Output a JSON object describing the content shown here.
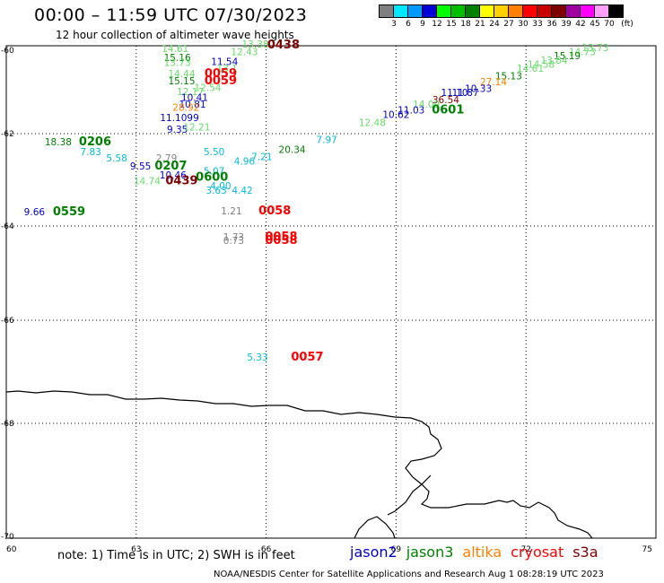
{
  "header": {
    "title": "00:00 – 11:59 UTC 07/30/2023",
    "subtitle": "12 hour collection of altimeter wave heights"
  },
  "legend": {
    "unit": "(ft)",
    "bins": [
      {
        "label": "3",
        "color": "#808080"
      },
      {
        "label": "6",
        "color": "#00e8ff"
      },
      {
        "label": "9",
        "color": "#009aff"
      },
      {
        "label": "12",
        "color": "#0000d8"
      },
      {
        "label": "15",
        "color": "#00ff00"
      },
      {
        "label": "18",
        "color": "#00c000"
      },
      {
        "label": "21",
        "color": "#008000"
      },
      {
        "label": "24",
        "color": "#ffff00"
      },
      {
        "label": "27",
        "color": "#ffd000"
      },
      {
        "label": "30",
        "color": "#ff8000"
      },
      {
        "label": "33",
        "color": "#ff0000"
      },
      {
        "label": "36",
        "color": "#c80000"
      },
      {
        "label": "39",
        "color": "#800000"
      },
      {
        "label": "42",
        "color": "#a000a0"
      },
      {
        "label": "45",
        "color": "#ff00ff"
      },
      {
        "label": "70",
        "color": "#ffa0ff"
      },
      {
        "label": "",
        "color": "#000000"
      }
    ]
  },
  "axes": {
    "lon_ticks": [
      "60",
      "63",
      "66",
      "69",
      "72",
      "75"
    ],
    "lat_ticks": [
      "-60",
      "-62",
      "-64",
      "-66",
      "-68",
      "-70"
    ]
  },
  "labels": [
    {
      "t": "14.61",
      "lon": 63.9,
      "lat": -60.04,
      "c": "#66dd66"
    },
    {
      "t": "13.38",
      "lon": 65.75,
      "lat": -59.94,
      "c": "#66dd66"
    },
    {
      "t": "0438",
      "lon": 66.4,
      "lat": -59.96,
      "c": "#800000",
      "bold": true
    },
    {
      "t": "12.43",
      "lon": 65.5,
      "lat": -60.12,
      "c": "#66dd66"
    },
    {
      "t": "15.16",
      "lon": 63.95,
      "lat": -60.26,
      "c": "#008000"
    },
    {
      "t": "11.54",
      "lon": 65.04,
      "lat": -60.35,
      "c": "#0000cc"
    },
    {
      "t": "13.73",
      "lon": 63.95,
      "lat": -60.38,
      "c": "#66dd66"
    },
    {
      "t": "13.1",
      "lon": 65.1,
      "lat": -60.52,
      "c": "#66dd66"
    },
    {
      "t": "14.44",
      "lon": 64.05,
      "lat": -60.65,
      "c": "#66dd66"
    },
    {
      "t": "0059",
      "lon": 64.95,
      "lat": -60.65,
      "c": "#ff0000",
      "bold": true
    },
    {
      "t": "15.15",
      "lon": 64.05,
      "lat": -60.82,
      "c": "#008000"
    },
    {
      "t": "0059",
      "lon": 64.95,
      "lat": -60.82,
      "c": "#ff0000",
      "bold": true
    },
    {
      "t": "12.54",
      "lon": 64.65,
      "lat": -60.98,
      "c": "#66dd66"
    },
    {
      "t": "12.17",
      "lon": 64.25,
      "lat": -61.08,
      "c": "#66dd66"
    },
    {
      "t": "10.41",
      "lon": 64.35,
      "lat": -61.22,
      "c": "#0000cc"
    },
    {
      "t": "10.81",
      "lon": 64.3,
      "lat": -61.38,
      "c": "#0000cc"
    },
    {
      "t": "28.92",
      "lon": 64.15,
      "lat": -61.45,
      "c": "#ff8000"
    },
    {
      "t": "11.1099",
      "lon": 64.0,
      "lat": -61.7,
      "c": "#0000cc"
    },
    {
      "t": "9.35",
      "lon": 63.95,
      "lat": -61.98,
      "c": "#0000cc"
    },
    {
      "t": "12.21",
      "lon": 64.4,
      "lat": -61.93,
      "c": "#66dd66"
    },
    {
      "t": "13.73",
      "lon": 73.6,
      "lat": -60.02,
      "c": "#66dd66"
    },
    {
      "t": "14.73",
      "lon": 73.3,
      "lat": -60.12,
      "c": "#66dd66"
    },
    {
      "t": "15.19",
      "lon": 72.95,
      "lat": -60.22,
      "c": "#008000"
    },
    {
      "t": "13.84",
      "lon": 72.65,
      "lat": -60.32,
      "c": "#66dd66"
    },
    {
      "t": "14.58",
      "lon": 72.35,
      "lat": -60.42,
      "c": "#66dd66"
    },
    {
      "t": "14.61",
      "lon": 72.1,
      "lat": -60.52,
      "c": "#66dd66"
    },
    {
      "t": "15.13",
      "lon": 71.6,
      "lat": -60.7,
      "c": "#008000"
    },
    {
      "t": "27.14",
      "lon": 71.25,
      "lat": -60.84,
      "c": "#ff8000"
    },
    {
      "t": "10.33",
      "lon": 70.9,
      "lat": -61.0,
      "c": "#0000cc"
    },
    {
      "t": "11.87",
      "lon": 70.6,
      "lat": -61.1,
      "c": "#0000cc"
    },
    {
      "t": "11.10",
      "lon": 70.35,
      "lat": -61.1,
      "c": "#0000cc"
    },
    {
      "t": "36.54",
      "lon": 70.15,
      "lat": -61.27,
      "c": "#800000"
    },
    {
      "t": "14.09",
      "lon": 69.7,
      "lat": -61.38,
      "c": "#66dd66"
    },
    {
      "t": "0601",
      "lon": 70.2,
      "lat": -61.52,
      "c": "#008000",
      "bold": true
    },
    {
      "t": "11.03",
      "lon": 69.35,
      "lat": -61.52,
      "c": "#0000cc"
    },
    {
      "t": "10.62",
      "lon": 69.0,
      "lat": -61.62,
      "c": "#0000cc"
    },
    {
      "t": "12.48",
      "lon": 68.45,
      "lat": -61.82,
      "c": "#66dd66"
    },
    {
      "t": "18.38",
      "lon": 61.2,
      "lat": -62.25,
      "c": "#008000"
    },
    {
      "t": "0206",
      "lon": 62.05,
      "lat": -62.25,
      "c": "#008000",
      "bold": true
    },
    {
      "t": "7.97",
      "lon": 67.4,
      "lat": -62.2,
      "c": "#00bbdd"
    },
    {
      "t": "20.34",
      "lon": 66.6,
      "lat": -62.42,
      "c": "#008000"
    },
    {
      "t": "7.83",
      "lon": 61.95,
      "lat": -62.47,
      "c": "#00bbdd"
    },
    {
      "t": "5.50",
      "lon": 64.8,
      "lat": -62.47,
      "c": "#00bbdd"
    },
    {
      "t": "5.58",
      "lon": 62.55,
      "lat": -62.6,
      "c": "#00bbdd"
    },
    {
      "t": "2.79",
      "lon": 63.7,
      "lat": -62.6,
      "c": "#808080"
    },
    {
      "t": "7.21",
      "lon": 65.9,
      "lat": -62.57,
      "c": "#00bbdd"
    },
    {
      "t": "4.96",
      "lon": 65.5,
      "lat": -62.67,
      "c": "#00bbdd"
    },
    {
      "t": "9.55",
      "lon": 63.1,
      "lat": -62.78,
      "c": "#0000cc"
    },
    {
      "t": "0207",
      "lon": 63.8,
      "lat": -62.78,
      "c": "#008000",
      "bold": true
    },
    {
      "t": "5.07",
      "lon": 64.8,
      "lat": -62.88,
      "c": "#00bbdd"
    },
    {
      "t": "10.46",
      "lon": 63.85,
      "lat": -62.97,
      "c": "#0000cc"
    },
    {
      "t": "0600",
      "lon": 64.75,
      "lat": -63.02,
      "c": "#008000",
      "bold": true
    },
    {
      "t": "14.74",
      "lon": 63.25,
      "lat": -63.1,
      "c": "#66dd66"
    },
    {
      "t": "0439",
      "lon": 64.05,
      "lat": -63.1,
      "c": "#800000",
      "bold": true
    },
    {
      "t": "4.00",
      "lon": 64.95,
      "lat": -63.2,
      "c": "#00bbdd"
    },
    {
      "t": "3.63",
      "lon": 64.85,
      "lat": -63.3,
      "c": "#00bbdd"
    },
    {
      "t": "4.42",
      "lon": 65.45,
      "lat": -63.3,
      "c": "#00bbdd"
    },
    {
      "t": "9.66",
      "lon": 60.65,
      "lat": -63.77,
      "c": "#0000cc"
    },
    {
      "t": "0559",
      "lon": 61.45,
      "lat": -63.77,
      "c": "#008000",
      "bold": true
    },
    {
      "t": "1.21",
      "lon": 65.2,
      "lat": -63.75,
      "c": "#808080"
    },
    {
      "t": "0058",
      "lon": 66.2,
      "lat": -63.75,
      "c": "#ff0000",
      "bold": true
    },
    {
      "t": "1.73",
      "lon": 65.25,
      "lat": -64.3,
      "c": "#808080"
    },
    {
      "t": "0.73",
      "lon": 65.25,
      "lat": -64.38,
      "c": "#808080"
    },
    {
      "t": "0058",
      "lon": 66.35,
      "lat": -64.3,
      "c": "#ff0000",
      "bold": true
    },
    {
      "t": "0058",
      "lon": 66.35,
      "lat": -64.38,
      "c": "#ff0000",
      "bold": true
    },
    {
      "t": "5.33",
      "lon": 65.8,
      "lat": -66.78,
      "c": "#00bbdd"
    },
    {
      "t": "0057",
      "lon": 66.95,
      "lat": -66.78,
      "c": "#ff0000",
      "bold": true
    }
  ],
  "footer": {
    "note": "note: 1) Time is in UTC; 2) SWH is in feet",
    "satellites": [
      {
        "name": "jason2",
        "color": "#0000cc"
      },
      {
        "name": "jason3",
        "color": "#008000"
      },
      {
        "name": "altika",
        "color": "#ff8000"
      },
      {
        "name": "cryosat",
        "color": "#ff0000"
      },
      {
        "name": "s3a",
        "color": "#800000"
      }
    ],
    "credit": "NOAA/NESDIS Center for Satellite Applications and Research   Aug  1 08:28:19 UTC 2023"
  }
}
